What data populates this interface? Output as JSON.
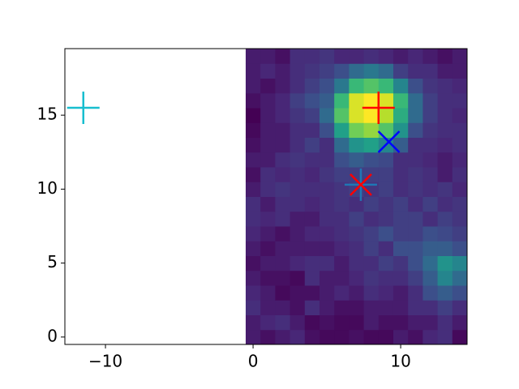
{
  "chart_data": {
    "type": "heatmap",
    "colormap": "viridis",
    "xlim": [
      -12.75,
      14.5
    ],
    "ylim": [
      -0.5,
      19.5
    ],
    "xticks": [
      {
        "value": -10,
        "label": "−10"
      },
      0,
      10
    ],
    "yticks": [
      0,
      5,
      10,
      15
    ],
    "extent": [
      -0.5,
      14.5,
      -0.5,
      19.5
    ],
    "z": [
      [
        0.15,
        0.12,
        0.15,
        0.18,
        0.12,
        0.1,
        0.1,
        0.12,
        0.1,
        0.1,
        0.15,
        0.12,
        0.18,
        0.2,
        0.1
      ],
      [
        0.15,
        0.18,
        0.2,
        0.15,
        0.1,
        0.12,
        0.1,
        0.1,
        0.15,
        0.12,
        0.12,
        0.15,
        0.15,
        0.2,
        0.15
      ],
      [
        0.2,
        0.15,
        0.15,
        0.12,
        0.2,
        0.15,
        0.12,
        0.12,
        0.15,
        0.15,
        0.15,
        0.2,
        0.2,
        0.25,
        0.2
      ],
      [
        0.18,
        0.15,
        0.1,
        0.12,
        0.12,
        0.15,
        0.18,
        0.15,
        0.2,
        0.18,
        0.15,
        0.2,
        0.3,
        0.35,
        0.3
      ],
      [
        0.15,
        0.12,
        0.12,
        0.1,
        0.2,
        0.15,
        0.15,
        0.18,
        0.22,
        0.2,
        0.2,
        0.25,
        0.35,
        0.5,
        0.4
      ],
      [
        0.12,
        0.15,
        0.15,
        0.18,
        0.2,
        0.2,
        0.15,
        0.2,
        0.2,
        0.25,
        0.22,
        0.3,
        0.4,
        0.55,
        0.5
      ],
      [
        0.15,
        0.12,
        0.15,
        0.15,
        0.15,
        0.15,
        0.18,
        0.2,
        0.25,
        0.2,
        0.3,
        0.3,
        0.35,
        0.35,
        0.3
      ],
      [
        0.18,
        0.15,
        0.12,
        0.15,
        0.18,
        0.18,
        0.2,
        0.22,
        0.25,
        0.3,
        0.25,
        0.25,
        0.3,
        0.28,
        0.25
      ],
      [
        0.2,
        0.18,
        0.2,
        0.15,
        0.15,
        0.2,
        0.2,
        0.25,
        0.2,
        0.22,
        0.25,
        0.25,
        0.2,
        0.25,
        0.22
      ],
      [
        0.2,
        0.15,
        0.2,
        0.2,
        0.18,
        0.2,
        0.22,
        0.2,
        0.25,
        0.22,
        0.25,
        0.2,
        0.25,
        0.2,
        0.22
      ],
      [
        0.15,
        0.2,
        0.22,
        0.2,
        0.2,
        0.2,
        0.22,
        0.25,
        0.22,
        0.25,
        0.2,
        0.22,
        0.2,
        0.22,
        0.18
      ],
      [
        0.12,
        0.2,
        0.18,
        0.2,
        0.18,
        0.22,
        0.25,
        0.25,
        0.25,
        0.25,
        0.2,
        0.22,
        0.2,
        0.15,
        0.2
      ],
      [
        0.15,
        0.15,
        0.2,
        0.22,
        0.2,
        0.2,
        0.3,
        0.35,
        0.3,
        0.28,
        0.2,
        0.2,
        0.18,
        0.15,
        0.18
      ],
      [
        0.12,
        0.15,
        0.15,
        0.2,
        0.25,
        0.2,
        0.4,
        0.55,
        0.6,
        0.5,
        0.35,
        0.2,
        0.2,
        0.18,
        0.2
      ],
      [
        0.1,
        0.15,
        0.15,
        0.2,
        0.2,
        0.3,
        0.6,
        0.8,
        0.85,
        0.75,
        0.55,
        0.3,
        0.22,
        0.2,
        0.2
      ],
      [
        0.08,
        0.15,
        0.18,
        0.22,
        0.25,
        0.4,
        0.75,
        0.95,
        1.0,
        0.9,
        0.65,
        0.4,
        0.25,
        0.2,
        0.18
      ],
      [
        0.12,
        0.15,
        0.18,
        0.25,
        0.3,
        0.35,
        0.7,
        0.95,
        1.0,
        0.95,
        0.7,
        0.4,
        0.25,
        0.2,
        0.2
      ],
      [
        0.15,
        0.12,
        0.15,
        0.2,
        0.25,
        0.3,
        0.45,
        0.7,
        0.75,
        0.7,
        0.5,
        0.3,
        0.22,
        0.2,
        0.18
      ],
      [
        0.15,
        0.18,
        0.15,
        0.2,
        0.22,
        0.25,
        0.3,
        0.4,
        0.45,
        0.4,
        0.25,
        0.2,
        0.2,
        0.15,
        0.15
      ],
      [
        0.15,
        0.15,
        0.12,
        0.2,
        0.2,
        0.22,
        0.18,
        0.18,
        0.2,
        0.18,
        0.15,
        0.18,
        0.15,
        0.12,
        0.15
      ]
    ],
    "markers": [
      {
        "x": -11.5,
        "y": 15.5,
        "marker": "+",
        "color": "#17becf"
      },
      {
        "x": 8.5,
        "y": 15.5,
        "marker": "+",
        "color": "#ff0000"
      },
      {
        "x": 9.2,
        "y": 13.2,
        "marker": "x",
        "color": "#0000ff"
      },
      {
        "x": 7.3,
        "y": 10.3,
        "marker": "+",
        "color": "#1f77b4"
      },
      {
        "x": 7.3,
        "y": 10.3,
        "marker": "x",
        "color": "#ff0000"
      }
    ]
  }
}
